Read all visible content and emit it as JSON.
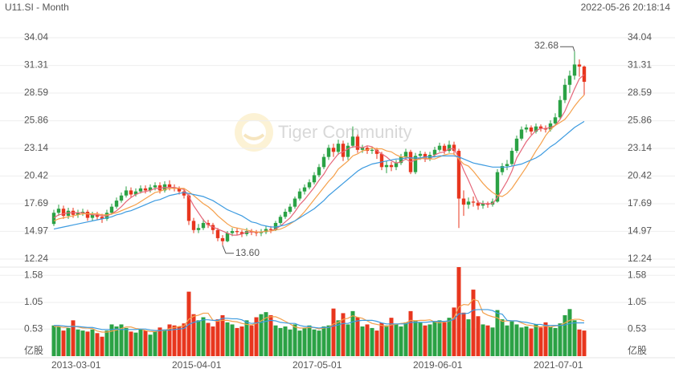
{
  "chart_data": {
    "type": "candlestick",
    "title": "U11.SI - Month",
    "timestamp": "2022-05-26 20:18:14",
    "watermark": "Tiger Community",
    "up_color": "#2ba245",
    "down_color": "#e8361e",
    "ylim": [
      12.24,
      34.04
    ],
    "yticks": [
      34.04,
      31.31,
      28.59,
      25.86,
      23.14,
      20.42,
      17.69,
      14.97,
      12.24
    ],
    "xticks": [
      {
        "value": 0,
        "label": "2013-03-01"
      },
      {
        "value": 25,
        "label": "2015-04-01"
      },
      {
        "value": 50,
        "label": "2017-05-01"
      },
      {
        "value": 75,
        "label": "2019-06-01"
      },
      {
        "value": 100,
        "label": "2021-07-01"
      }
    ],
    "open": [
      15.7,
      16.8,
      17.2,
      16.5,
      17.0,
      16.6,
      16.8,
      16.9,
      16.3,
      16.6,
      16.4,
      16.2,
      16.8,
      17.4,
      18.0,
      18.5,
      19.0,
      18.6,
      18.9,
      19.2,
      19.0,
      19.3,
      19.5,
      19.0,
      19.6,
      19.3,
      19.2,
      18.9,
      18.5,
      16.0,
      15.1,
      15.3,
      15.8,
      15.6,
      15.1,
      14.3,
      14.0,
      14.8,
      15.0,
      14.9,
      14.7,
      15.0,
      14.9,
      14.8,
      14.9,
      15.2,
      15.1,
      15.8,
      16.4,
      16.9,
      17.4,
      18.2,
      18.9,
      19.3,
      19.8,
      20.5,
      21.3,
      22.3,
      23.2,
      22.8,
      23.6,
      22.3,
      23.4,
      24.3,
      23.0,
      23.2,
      22.9,
      23.0,
      22.6,
      21.3,
      21.5,
      21.3,
      21.7,
      22.3,
      22.8,
      20.8,
      22.4,
      22.6,
      22.1,
      22.5,
      23.0,
      23.4,
      22.9,
      23.5,
      22.9,
      18.2,
      17.6,
      17.9,
      17.8,
      17.5,
      17.7,
      17.6,
      17.9,
      20.8,
      21.4,
      21.6,
      22.9,
      24.1,
      25.0,
      25.2,
      24.8,
      25.3,
      25.1,
      25.0,
      25.6,
      26.2,
      27.9,
      29.4,
      30.3,
      31.4,
      31.2
    ],
    "high": [
      17.1,
      17.6,
      17.5,
      17.3,
      17.3,
      17.1,
      17.2,
      17.1,
      16.9,
      16.9,
      16.7,
      17.1,
      17.7,
      18.3,
      18.8,
      19.4,
      19.3,
      19.2,
      19.5,
      19.5,
      19.6,
      19.8,
      19.8,
      19.9,
      20.0,
      19.6,
      19.4,
      19.1,
      18.7,
      16.3,
      15.7,
      16.2,
      16.1,
      15.8,
      15.3,
      14.6,
      15.0,
      15.3,
      15.3,
      15.1,
      15.3,
      15.2,
      15.1,
      15.2,
      15.5,
      15.5,
      16.0,
      16.6,
      17.2,
      17.7,
      18.4,
      19.2,
      19.6,
      20.1,
      20.8,
      21.6,
      22.6,
      23.5,
      23.6,
      24.0,
      23.9,
      23.7,
      25.3,
      24.5,
      23.5,
      23.4,
      23.3,
      23.2,
      22.8,
      21.9,
      21.8,
      22.0,
      22.6,
      23.1,
      23.0,
      22.7,
      22.9,
      22.8,
      22.8,
      23.3,
      23.7,
      23.6,
      23.9,
      23.8,
      23.1,
      19.0,
      18.3,
      18.4,
      18.0,
      18.0,
      17.9,
      18.2,
      21.1,
      21.7,
      22.0,
      23.2,
      24.4,
      25.3,
      25.5,
      25.4,
      25.6,
      25.5,
      25.4,
      25.9,
      26.6,
      28.3,
      30.0,
      30.8,
      32.68,
      31.9,
      31.3
    ],
    "low": [
      15.5,
      16.5,
      16.2,
      16.2,
      16.3,
      16.3,
      16.5,
      16.0,
      16.0,
      16.1,
      15.8,
      16.0,
      16.6,
      17.2,
      17.8,
      18.3,
      18.3,
      18.4,
      18.7,
      18.7,
      18.8,
      19.0,
      18.7,
      18.8,
      19.0,
      18.9,
      18.6,
      18.2,
      15.6,
      14.8,
      14.8,
      15.1,
      15.3,
      14.7,
      14.0,
      13.6,
      13.9,
      14.5,
      14.6,
      14.4,
      14.5,
      14.6,
      14.5,
      14.5,
      14.7,
      14.8,
      15.0,
      15.6,
      16.2,
      16.7,
      17.2,
      18.0,
      18.6,
      19.1,
      19.6,
      20.3,
      21.1,
      22.0,
      22.3,
      22.5,
      21.9,
      22.0,
      23.2,
      22.7,
      22.7,
      22.6,
      22.6,
      22.1,
      21.0,
      20.7,
      20.9,
      21.0,
      21.5,
      22.0,
      20.6,
      20.6,
      22.0,
      21.8,
      21.9,
      22.3,
      22.8,
      22.6,
      22.7,
      22.5,
      15.3,
      16.5,
      17.2,
      17.4,
      17.1,
      17.2,
      17.3,
      17.4,
      17.8,
      20.5,
      21.0,
      21.4,
      22.7,
      23.9,
      24.7,
      24.5,
      24.6,
      24.8,
      24.7,
      24.8,
      25.4,
      26.0,
      27.6,
      28.6,
      29.9,
      30.2,
      28.4
    ],
    "close": [
      16.8,
      17.2,
      16.5,
      17.0,
      16.6,
      16.8,
      16.9,
      16.3,
      16.6,
      16.4,
      16.2,
      16.8,
      17.4,
      18.0,
      18.5,
      19.0,
      18.6,
      18.9,
      19.2,
      19.0,
      19.3,
      19.5,
      19.0,
      19.6,
      19.3,
      19.2,
      18.9,
      18.5,
      16.0,
      15.1,
      15.3,
      15.8,
      15.6,
      15.1,
      14.3,
      14.0,
      14.8,
      15.0,
      14.9,
      14.7,
      15.0,
      14.9,
      14.8,
      14.9,
      15.2,
      15.1,
      15.8,
      16.4,
      16.9,
      17.4,
      18.2,
      18.9,
      19.3,
      19.8,
      20.5,
      21.3,
      22.3,
      23.2,
      22.8,
      23.6,
      22.3,
      23.4,
      24.3,
      23.0,
      23.2,
      22.9,
      23.0,
      22.6,
      21.3,
      21.5,
      21.3,
      21.7,
      22.3,
      22.8,
      20.8,
      22.4,
      22.6,
      22.1,
      22.5,
      23.0,
      23.4,
      22.9,
      23.5,
      22.9,
      18.2,
      17.6,
      17.9,
      17.8,
      17.5,
      17.7,
      17.6,
      17.9,
      20.8,
      21.4,
      21.6,
      22.9,
      24.1,
      25.0,
      25.2,
      24.8,
      25.3,
      25.1,
      25.0,
      25.6,
      26.2,
      27.9,
      29.4,
      30.3,
      31.4,
      31.2,
      29.7
    ],
    "moving_averages": [
      {
        "color": "#e5677a",
        "values": [
          16.3,
          16.6,
          16.7,
          16.8,
          16.8,
          16.8,
          16.8,
          16.7,
          16.6,
          16.6,
          16.5,
          16.5,
          16.7,
          17.0,
          17.4,
          17.9,
          18.3,
          18.6,
          18.8,
          18.9,
          19.0,
          19.2,
          19.2,
          19.3,
          19.3,
          19.3,
          19.2,
          19.1,
          18.4,
          17.5,
          16.8,
          16.1,
          15.6,
          15.4,
          15.2,
          15.0,
          14.8,
          14.6,
          14.6,
          14.7,
          14.9,
          14.9,
          14.9,
          14.9,
          15.0,
          15.0,
          15.2,
          15.5,
          15.9,
          16.3,
          16.9,
          17.6,
          18.1,
          18.7,
          19.3,
          20.0,
          20.6,
          21.4,
          22.0,
          22.6,
          22.8,
          23.1,
          23.3,
          23.3,
          23.2,
          23.4,
          23.3,
          22.9,
          22.6,
          22.3,
          21.9,
          21.7,
          21.8,
          22.1,
          21.8,
          22.0,
          22.2,
          22.1,
          22.1,
          22.5,
          22.7,
          22.8,
          23.1,
          23.1,
          22.2,
          21.0,
          20.0,
          18.9,
          17.8,
          17.7,
          17.7,
          17.7,
          18.3,
          19.1,
          19.9,
          20.9,
          22.2,
          23.0,
          23.8,
          24.4,
          24.9,
          25.1,
          25.1,
          25.2,
          25.4,
          26.0,
          26.8,
          27.9,
          29.0,
          30.0,
          30.4
        ]
      },
      {
        "color": "#f5a04b",
        "values": [
          16.0,
          16.2,
          16.3,
          16.4,
          16.5,
          16.6,
          16.7,
          16.7,
          16.7,
          16.7,
          16.6,
          16.6,
          16.7,
          16.8,
          17.0,
          17.2,
          17.4,
          17.6,
          17.9,
          18.2,
          18.5,
          18.8,
          18.9,
          19.1,
          19.2,
          19.2,
          19.2,
          19.2,
          18.9,
          18.5,
          18.1,
          17.7,
          17.4,
          17.0,
          16.5,
          16.1,
          15.7,
          15.4,
          15.3,
          15.2,
          15.1,
          15.0,
          14.9,
          14.9,
          15.0,
          15.0,
          15.1,
          15.2,
          15.4,
          15.7,
          16.0,
          16.4,
          16.9,
          17.5,
          18.1,
          18.7,
          19.3,
          19.9,
          20.4,
          21.1,
          21.5,
          21.9,
          22.4,
          22.6,
          22.9,
          23.0,
          23.2,
          23.1,
          23.1,
          22.9,
          22.8,
          22.5,
          22.3,
          22.3,
          22.2,
          22.0,
          22.1,
          22.2,
          22.1,
          22.1,
          22.3,
          22.5,
          22.6,
          22.6,
          22.1,
          21.6,
          21.4,
          20.9,
          20.3,
          19.7,
          19.2,
          18.8,
          18.5,
          18.4,
          18.7,
          19.2,
          19.9,
          20.6,
          21.3,
          22.1,
          22.9,
          23.6,
          24.4,
          25.0,
          25.4,
          25.7,
          26.0,
          26.6,
          27.3,
          27.9,
          28.4
        ]
      },
      {
        "color": "#3d9be0",
        "values": [
          15.2,
          15.3,
          15.4,
          15.5,
          15.6,
          15.7,
          15.8,
          15.9,
          16.0,
          16.1,
          16.2,
          16.3,
          16.4,
          16.6,
          16.7,
          16.9,
          17.0,
          17.2,
          17.4,
          17.6,
          17.8,
          18.0,
          18.1,
          18.3,
          18.5,
          18.6,
          18.7,
          18.8,
          18.7,
          18.6,
          18.5,
          18.4,
          18.2,
          18.0,
          17.7,
          17.4,
          17.1,
          16.9,
          16.7,
          16.5,
          16.2,
          15.9,
          15.8,
          15.6,
          15.5,
          15.4,
          15.4,
          15.5,
          15.6,
          15.8,
          16.0,
          16.3,
          16.6,
          16.9,
          17.2,
          17.6,
          18.0,
          18.5,
          18.9,
          19.3,
          19.7,
          20.1,
          20.5,
          20.9,
          21.2,
          21.4,
          21.6,
          21.7,
          21.8,
          21.9,
          22.0,
          22.1,
          22.1,
          22.2,
          22.2,
          22.2,
          22.2,
          22.3,
          22.3,
          22.3,
          22.4,
          22.4,
          22.4,
          22.4,
          22.3,
          22.1,
          21.9,
          21.7,
          21.6,
          21.5,
          21.4,
          21.3,
          21.3,
          21.3,
          21.3,
          21.4,
          21.5,
          21.6,
          21.8,
          22.0,
          22.2,
          22.5,
          22.9,
          23.3,
          23.6,
          24.0,
          24.4,
          24.8,
          25.2,
          25.5,
          25.8
        ]
      }
    ],
    "annotations": [
      {
        "label": "32.68",
        "value": 32.68,
        "field": "high"
      },
      {
        "label": "13.60",
        "value": 13.6,
        "field": "low"
      }
    ],
    "volume": {
      "unit": "亿股",
      "ylim": [
        0,
        1.74
      ],
      "yticks": [
        0.53,
        1.05,
        1.58
      ],
      "values": [
        0.6,
        0.58,
        0.5,
        0.55,
        0.7,
        0.52,
        0.5,
        0.48,
        0.52,
        0.45,
        0.38,
        0.5,
        0.62,
        0.58,
        0.62,
        0.55,
        0.48,
        0.46,
        0.52,
        0.5,
        0.42,
        0.48,
        0.56,
        0.52,
        0.62,
        0.6,
        0.58,
        0.64,
        1.26,
        0.82,
        0.7,
        0.76,
        0.65,
        0.58,
        0.72,
        0.8,
        0.66,
        0.62,
        0.55,
        0.58,
        0.7,
        0.6,
        0.76,
        0.82,
        0.86,
        0.8,
        0.6,
        0.55,
        0.58,
        0.52,
        0.62,
        0.5,
        0.55,
        0.6,
        0.52,
        0.5,
        0.58,
        0.6,
        0.93,
        0.7,
        0.84,
        0.62,
        0.88,
        0.76,
        0.58,
        0.62,
        0.55,
        0.5,
        0.65,
        0.6,
        0.75,
        0.62,
        0.58,
        0.66,
        0.88,
        0.7,
        0.66,
        0.6,
        0.62,
        0.68,
        0.7,
        0.66,
        0.75,
        0.95,
        1.74,
        0.85,
        0.72,
        1.3,
        0.78,
        0.62,
        0.6,
        0.56,
        0.9,
        0.72,
        0.6,
        0.68,
        0.62,
        0.56,
        0.58,
        0.54,
        0.62,
        0.56,
        0.66,
        0.58,
        0.55,
        0.64,
        0.8,
        0.92,
        0.7,
        0.52,
        0.5
      ],
      "moving_averages": [
        {
          "color": "#f5a04b",
          "values": [
            0.58,
            0.58,
            0.56,
            0.57,
            0.59,
            0.57,
            0.55,
            0.55,
            0.54,
            0.49,
            0.47,
            0.47,
            0.49,
            0.51,
            0.54,
            0.57,
            0.57,
            0.54,
            0.53,
            0.5,
            0.48,
            0.48,
            0.5,
            0.5,
            0.54,
            0.56,
            0.58,
            0.59,
            0.72,
            0.78,
            0.8,
            0.84,
            0.84,
            0.7,
            0.68,
            0.7,
            0.7,
            0.68,
            0.67,
            0.64,
            0.62,
            0.61,
            0.64,
            0.69,
            0.75,
            0.77,
            0.77,
            0.73,
            0.68,
            0.63,
            0.57,
            0.55,
            0.55,
            0.56,
            0.56,
            0.53,
            0.55,
            0.56,
            0.63,
            0.66,
            0.72,
            0.74,
            0.79,
            0.76,
            0.74,
            0.69,
            0.64,
            0.62,
            0.6,
            0.58,
            0.61,
            0.62,
            0.64,
            0.65,
            0.7,
            0.69,
            0.7,
            0.7,
            0.71,
            0.67,
            0.65,
            0.67,
            0.68,
            0.75,
            0.96,
            1.01,
            1.0,
            1.11,
            1.08,
            0.85,
            0.8,
            0.77,
            0.75,
            0.68,
            0.69,
            0.69,
            0.69,
            0.65,
            0.61,
            0.6,
            0.58,
            0.57,
            0.59,
            0.57,
            0.59,
            0.6,
            0.65,
            0.7,
            0.72,
            0.72,
            0.69
          ]
        },
        {
          "color": "#3d9be0",
          "values": [
            0.6,
            0.6,
            0.59,
            0.58,
            0.58,
            0.58,
            0.57,
            0.56,
            0.56,
            0.54,
            0.52,
            0.52,
            0.52,
            0.53,
            0.52,
            0.52,
            0.52,
            0.52,
            0.53,
            0.53,
            0.51,
            0.5,
            0.5,
            0.51,
            0.51,
            0.52,
            0.53,
            0.54,
            0.62,
            0.66,
            0.68,
            0.71,
            0.71,
            0.7,
            0.7,
            0.74,
            0.74,
            0.73,
            0.73,
            0.71,
            0.66,
            0.64,
            0.65,
            0.66,
            0.68,
            0.7,
            0.69,
            0.66,
            0.65,
            0.64,
            0.64,
            0.6,
            0.58,
            0.58,
            0.56,
            0.55,
            0.56,
            0.56,
            0.59,
            0.61,
            0.64,
            0.64,
            0.67,
            0.69,
            0.7,
            0.7,
            0.7,
            0.68,
            0.65,
            0.63,
            0.63,
            0.63,
            0.63,
            0.63,
            0.66,
            0.66,
            0.66,
            0.66,
            0.67,
            0.68,
            0.68,
            0.68,
            0.69,
            0.72,
            0.83,
            0.83,
            0.84,
            0.9,
            0.91,
            0.91,
            0.91,
            0.89,
            0.84,
            0.82,
            0.7,
            0.69,
            0.69,
            0.67,
            0.66,
            0.64,
            0.62,
            0.62,
            0.6,
            0.6,
            0.6,
            0.6,
            0.61,
            0.64,
            0.65,
            0.65,
            0.65
          ]
        }
      ]
    }
  }
}
